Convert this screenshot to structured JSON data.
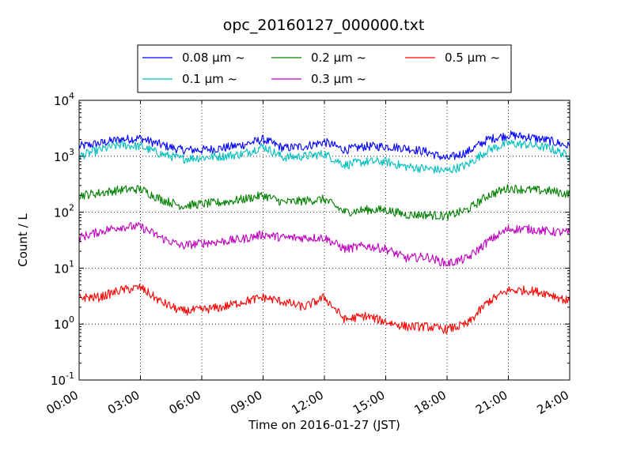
{
  "chart_data": {
    "type": "line",
    "title": "opc_20160127_000000.txt",
    "xlabel": "Time on 2016-01-27 (JST)",
    "ylabel": "Count / L",
    "yscale": "log",
    "ylim": [
      0.1,
      10000
    ],
    "xlim": [
      "2016-01-27 00:00",
      "2016-01-28 00:00"
    ],
    "grid": true,
    "legend_position": "top-center",
    "x_tick_labels": [
      "00:00",
      "03:00",
      "06:00",
      "09:00",
      "12:00",
      "15:00",
      "18:00",
      "21:00",
      "24:00"
    ],
    "y_ticks": [
      {
        "base": "10",
        "exp": "-1"
      },
      {
        "base": "10",
        "exp": "0"
      },
      {
        "base": "10",
        "exp": "1"
      },
      {
        "base": "10",
        "exp": "2"
      },
      {
        "base": "10",
        "exp": "3"
      },
      {
        "base": "10",
        "exp": "4"
      }
    ],
    "x": [
      "00:00",
      "01:00",
      "02:00",
      "03:00",
      "04:00",
      "05:00",
      "06:00",
      "07:00",
      "08:00",
      "09:00",
      "10:00",
      "11:00",
      "12:00",
      "13:00",
      "14:00",
      "15:00",
      "16:00",
      "17:00",
      "18:00",
      "19:00",
      "20:00",
      "21:00",
      "22:00",
      "23:00",
      "24:00"
    ],
    "series": [
      {
        "name": "0.08 μm ~",
        "color": "#0000ff",
        "values": [
          1500,
          1700,
          2000,
          2100,
          1600,
          1300,
          1300,
          1400,
          1600,
          2000,
          1400,
          1500,
          1800,
          1300,
          1500,
          1500,
          1400,
          1200,
          900,
          1200,
          2000,
          2400,
          2200,
          1900,
          1500
        ]
      },
      {
        "name": "0.1 μm ~",
        "color": "#00bfbf",
        "values": [
          1000,
          1300,
          1600,
          1500,
          1100,
          900,
          950,
          1000,
          1100,
          1500,
          950,
          1000,
          1100,
          700,
          800,
          800,
          650,
          600,
          550,
          700,
          1300,
          1700,
          1600,
          1400,
          1000
        ]
      },
      {
        "name": "0.2 μm ~",
        "color": "#008000",
        "values": [
          200,
          220,
          250,
          260,
          170,
          130,
          140,
          150,
          170,
          200,
          150,
          160,
          170,
          100,
          110,
          110,
          90,
          90,
          85,
          110,
          200,
          270,
          250,
          240,
          210
        ]
      },
      {
        "name": "0.3 μm ~",
        "color": "#bf00bf",
        "values": [
          35,
          45,
          55,
          55,
          35,
          25,
          28,
          30,
          33,
          40,
          35,
          35,
          35,
          22,
          25,
          22,
          15,
          16,
          12,
          15,
          30,
          50,
          50,
          45,
          43
        ]
      },
      {
        "name": "0.5 μm ~",
        "color": "#ff0000",
        "values": [
          3,
          3,
          4,
          4.5,
          2.5,
          1.7,
          1.8,
          2,
          2.5,
          3,
          2.5,
          2,
          3,
          1.2,
          1.4,
          1.1,
          0.9,
          0.9,
          0.8,
          1,
          2.5,
          4,
          4,
          3.5,
          2.5
        ]
      }
    ]
  }
}
